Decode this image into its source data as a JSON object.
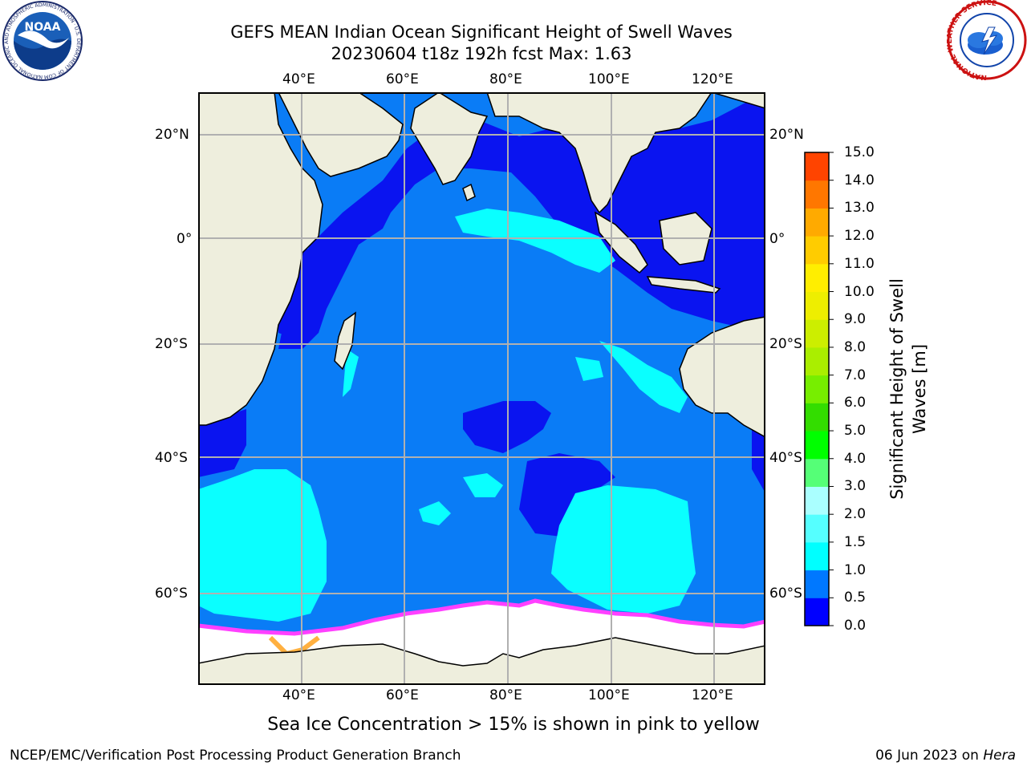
{
  "title": {
    "line1": "GEFS MEAN Indian Ocean Significant Height of Swell Waves",
    "line2": "20230604 t18z 192h fcst   Max: 1.63"
  },
  "map": {
    "lon_ticks": [
      "40°E",
      "60°E",
      "80°E",
      "100°E",
      "120°E"
    ],
    "lat_ticks": [
      "20°N",
      "0°",
      "20°S",
      "40°S",
      "60°S"
    ],
    "extent": {
      "lon_min": 20,
      "lon_max": 130,
      "lat_min": -71,
      "lat_max": 28
    },
    "land_color": "#eeeedd",
    "ocean_colors": {
      "swell_0_0.5": "#0a14f0",
      "swell_0.5_1.0": "#0a7cf6",
      "swell_1.0_1.5": "#0affff",
      "sea_ice": "#ffffff",
      "ice_edge": "#ff40ff"
    }
  },
  "colorbar": {
    "title": "Significant Height of Swell Waves [m]",
    "levels": [
      "0.0",
      "0.5",
      "1.0",
      "1.5",
      "2.0",
      "3.0",
      "4.0",
      "5.0",
      "6.0",
      "7.0",
      "8.0",
      "9.0",
      "10.0",
      "11.0",
      "12.0",
      "13.0",
      "14.0",
      "15.0"
    ],
    "colors": [
      "#0000ff",
      "#0078ff",
      "#00ffff",
      "#55ffff",
      "#aaffff",
      "#55ff77",
      "#00ff00",
      "#33dd00",
      "#77ee00",
      "#aaee00",
      "#ccee00",
      "#eeee00",
      "#ffee00",
      "#ffcc00",
      "#ffaa00",
      "#ff7700",
      "#ff4400",
      "#ff0000"
    ]
  },
  "caption": "Sea Ice Concentration > 15% is shown in pink to yellow",
  "footer": {
    "left": "NCEP/EMC/Verification Post Processing Product Generation Branch",
    "right_date": "06 Jun 2023 on ",
    "right_host": "Hera"
  },
  "logos": {
    "noaa": "NOAA",
    "noaa_ring": "NATIONAL OCEANIC AND ATMOSPHERIC ADMINISTRATION · U.S. DEPARTMENT OF COMMERCE",
    "nws_ring": "NATIONAL WEATHER SERVICE"
  }
}
